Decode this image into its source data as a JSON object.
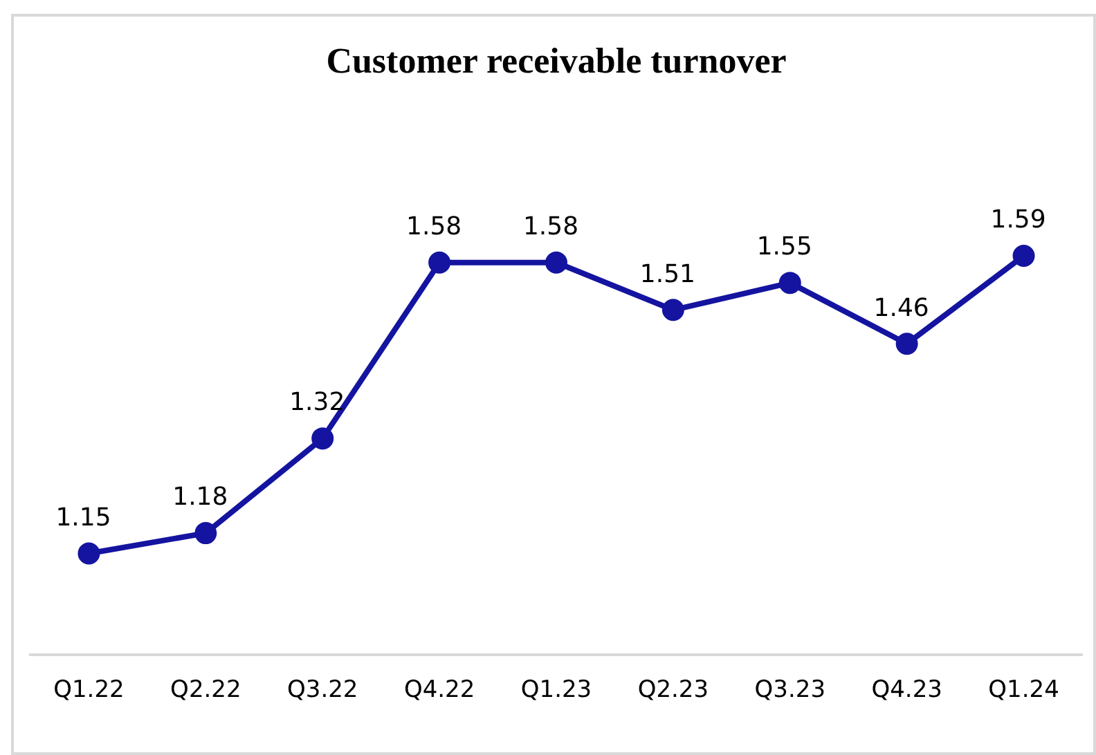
{
  "chart_data": {
    "type": "line",
    "title": "Customer receivable turnover",
    "categories": [
      "Q1.22",
      "Q2.22",
      "Q3.22",
      "Q4.22",
      "Q1.23",
      "Q2.23",
      "Q3.23",
      "Q4.23",
      "Q1.24"
    ],
    "series": [
      {
        "color": "#1414a0",
        "values": [
          1.15,
          1.18,
          1.32,
          1.58,
          1.58,
          1.51,
          1.55,
          1.46,
          1.59
        ]
      }
    ],
    "data_labels": true,
    "marker": "circle",
    "line_style": "solid",
    "grid": false,
    "legend": false,
    "tick_labels": "x"
  }
}
